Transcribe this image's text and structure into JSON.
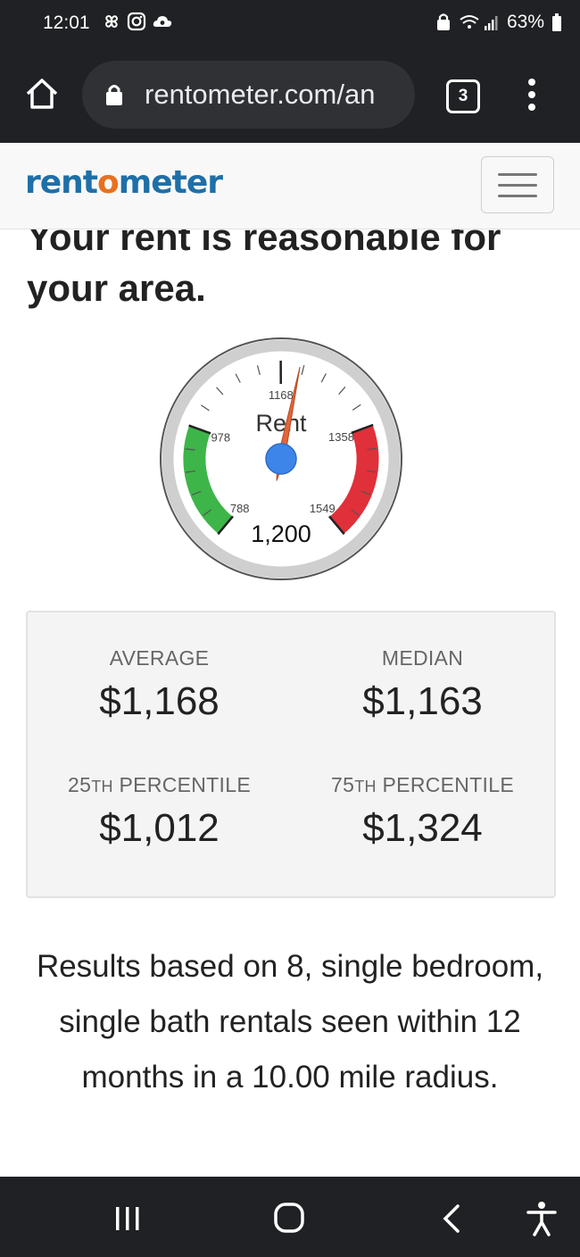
{
  "status_bar": {
    "time": "12:01",
    "battery": "63%"
  },
  "browser": {
    "url": "rentometer.com/an",
    "tab_count": "3"
  },
  "site": {
    "logo_pre": "rent",
    "logo_o": "o",
    "logo_post": "meter"
  },
  "headline": "Your rent is reasonable for your area.",
  "gauge": {
    "label": "Rent",
    "value_display": "1,200",
    "value": 1200,
    "ticks": [
      "788",
      "978",
      "1168",
      "1358",
      "1549"
    ],
    "colors": {
      "green": "#3db549",
      "red": "#e0303a",
      "needle": "#e0663b",
      "hub": "#3d85e8"
    }
  },
  "stats": {
    "average_label": "AVERAGE",
    "average_value": "$1,168",
    "median_label": "MEDIAN",
    "median_value": "$1,163",
    "p25_num": "25",
    "p25_suffix": "TH",
    "p25_label": "PERCENTILE",
    "p25_value": "$1,012",
    "p75_num": "75",
    "p75_suffix": "TH",
    "p75_label": "PERCENTILE",
    "p75_value": "$1,324"
  },
  "results_text": "Results based on 8, single bedroom, single bath rentals seen within 12 months in a 10.00 mile radius."
}
